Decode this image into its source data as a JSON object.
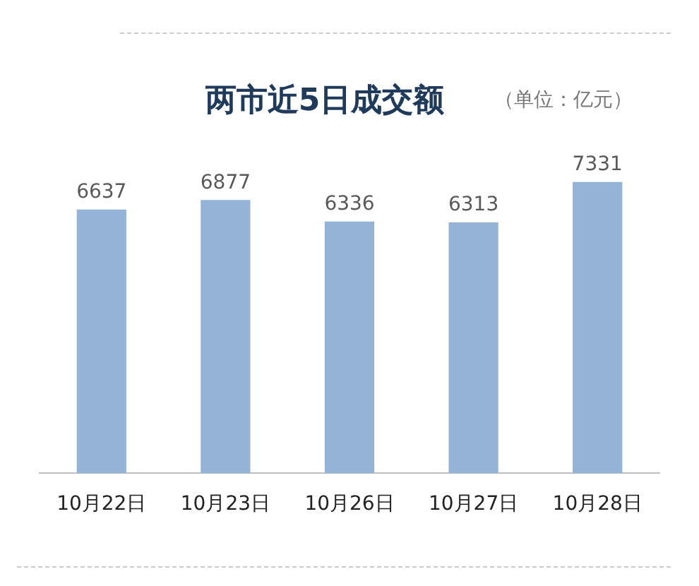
{
  "chart_data": {
    "type": "bar",
    "title": "两市近5日成交额",
    "subtitle": "（单位：亿元）",
    "categories": [
      "10月22日",
      "10月23日",
      "10月26日",
      "10月27日",
      "10月28日"
    ],
    "series": [
      {
        "color": "#95b3d7",
        "values": [
          6637,
          6877,
          6336,
          6313,
          7331
        ]
      }
    ],
    "data_labels": true,
    "grid": false,
    "legend": false
  }
}
